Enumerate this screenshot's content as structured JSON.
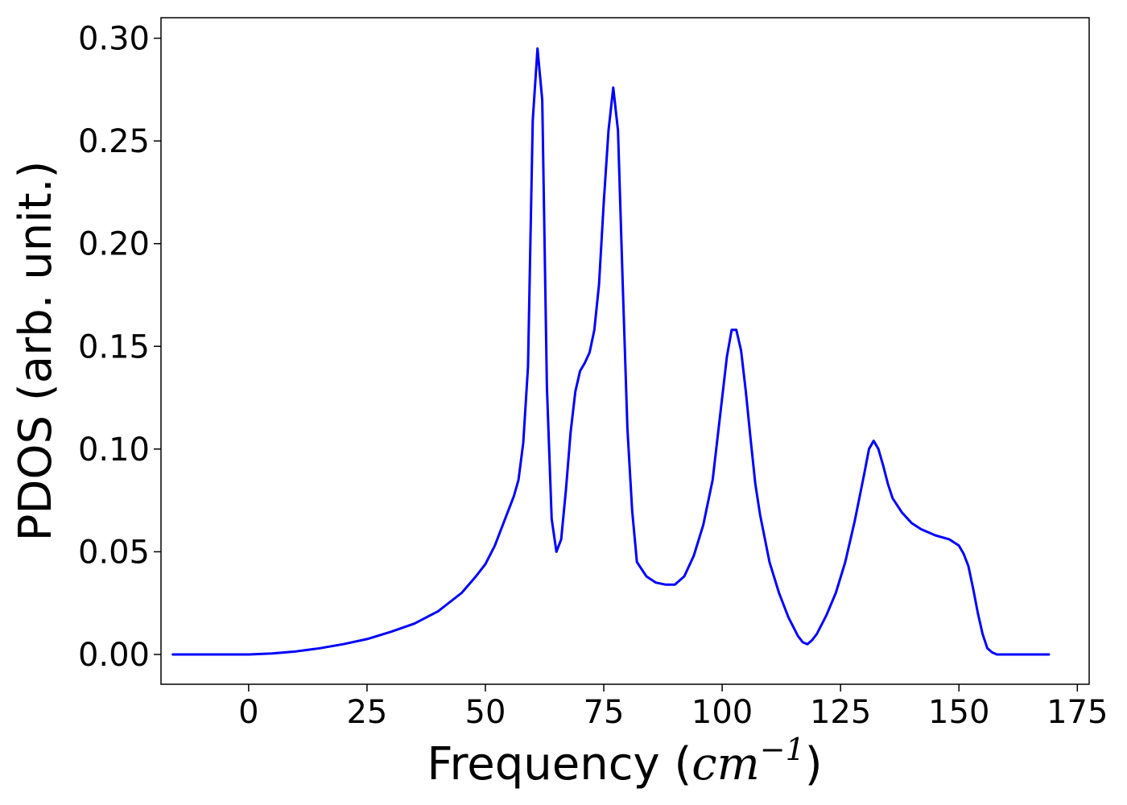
{
  "chart_data": {
    "type": "line",
    "title": "",
    "xlabel_prefix": "Frequency (",
    "xlabel_unit": "cm",
    "xlabel_exponent": "−1",
    "xlabel_suffix": ")",
    "ylabel": "PDOS (arb. unit.)",
    "xlim": [
      -18.5,
      177.5
    ],
    "ylim": [
      -0.0145,
      0.31
    ],
    "x_ticks": [
      0,
      25,
      50,
      75,
      100,
      125,
      150,
      175
    ],
    "x_tick_labels": [
      "0",
      "25",
      "50",
      "75",
      "100",
      "125",
      "150",
      "175"
    ],
    "y_ticks": [
      0.0,
      0.05,
      0.1,
      0.15,
      0.2,
      0.25,
      0.3
    ],
    "y_tick_labels": [
      "0.00",
      "0.05",
      "0.10",
      "0.15",
      "0.20",
      "0.25",
      "0.30"
    ],
    "grid": false,
    "legend": "none",
    "series": [
      {
        "color": "#0000ff",
        "x": [
          -16,
          0,
          5,
          10,
          15,
          20,
          25,
          30,
          35,
          40,
          45,
          48,
          50,
          52,
          54,
          56,
          57,
          58,
          59,
          60,
          61,
          62,
          63,
          64,
          65,
          66,
          67,
          68,
          69,
          70,
          71,
          72,
          73,
          74,
          75,
          76,
          77,
          78,
          79,
          80,
          81,
          82,
          84,
          86,
          88,
          90,
          92,
          94,
          96,
          98,
          100,
          101,
          102,
          103,
          104,
          105,
          106,
          107,
          108,
          110,
          112,
          114,
          116,
          117,
          118,
          119,
          120,
          122,
          124,
          126,
          128,
          130,
          131,
          132,
          133,
          134,
          135,
          136,
          138,
          140,
          142,
          145,
          148,
          150,
          151,
          152,
          153,
          154,
          155,
          156,
          157,
          158,
          160,
          165,
          169
        ],
        "y": [
          0.0,
          0.0,
          0.0005,
          0.0015,
          0.003,
          0.005,
          0.0075,
          0.011,
          0.015,
          0.021,
          0.03,
          0.038,
          0.044,
          0.053,
          0.065,
          0.077,
          0.085,
          0.103,
          0.14,
          0.26,
          0.295,
          0.27,
          0.13,
          0.066,
          0.05,
          0.056,
          0.08,
          0.108,
          0.128,
          0.138,
          0.142,
          0.147,
          0.158,
          0.18,
          0.22,
          0.255,
          0.276,
          0.255,
          0.18,
          0.11,
          0.07,
          0.045,
          0.038,
          0.035,
          0.034,
          0.034,
          0.038,
          0.048,
          0.063,
          0.085,
          0.125,
          0.145,
          0.158,
          0.158,
          0.148,
          0.128,
          0.105,
          0.083,
          0.068,
          0.045,
          0.03,
          0.018,
          0.009,
          0.006,
          0.005,
          0.007,
          0.01,
          0.019,
          0.03,
          0.045,
          0.065,
          0.088,
          0.1,
          0.104,
          0.1,
          0.092,
          0.083,
          0.076,
          0.069,
          0.064,
          0.061,
          0.058,
          0.056,
          0.053,
          0.049,
          0.043,
          0.032,
          0.02,
          0.01,
          0.003,
          0.001,
          0.0,
          0.0,
          0.0,
          0.0
        ]
      }
    ]
  }
}
